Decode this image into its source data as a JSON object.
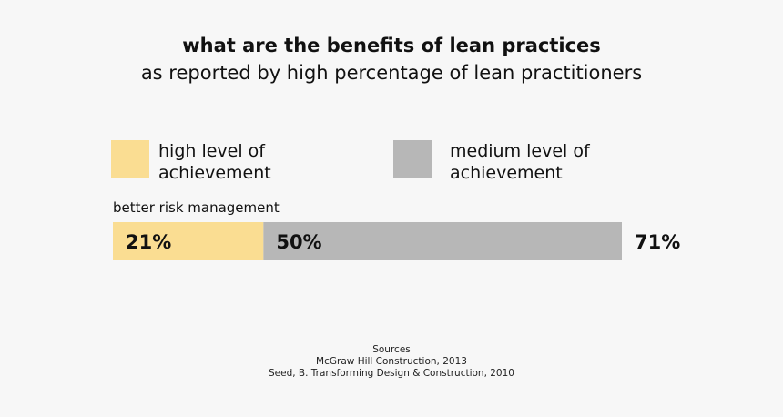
{
  "chart_data": {
    "type": "bar",
    "orientation": "horizontal",
    "stacked": true,
    "title": "what are the benefits of lean practices",
    "subtitle": "as reported by high percentage of lean practitioners",
    "categories": [
      "better risk management"
    ],
    "series": [
      {
        "name": "high level of achievement",
        "values": [
          21
        ],
        "color": "#fadd92",
        "label": "21%"
      },
      {
        "name": "medium level of achievement",
        "values": [
          50
        ],
        "color": "#b7b7b7",
        "label": "50%"
      }
    ],
    "total_labels": [
      "71%"
    ],
    "legend": {
      "items": [
        {
          "lines": [
            "high level of",
            "achievement"
          ],
          "color": "#fadd92"
        },
        {
          "lines": [
            "medium level of",
            "achievement"
          ],
          "color": "#b7b7b7"
        }
      ]
    },
    "xlabel": "",
    "ylabel": "",
    "xlim": [
      0,
      71
    ]
  },
  "sources": {
    "heading": "Sources",
    "lines": [
      "McGraw Hill Construction, 2013",
      "Seed, B. Transforming Design & Construction, 2010"
    ]
  }
}
